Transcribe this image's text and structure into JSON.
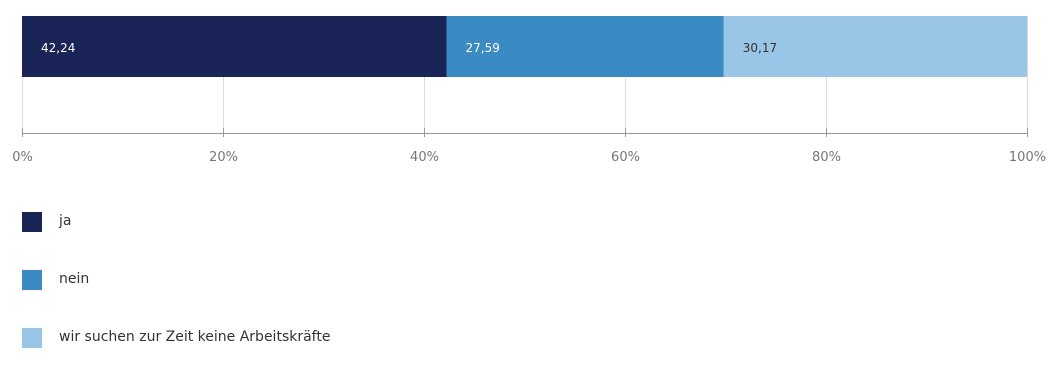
{
  "chart_data": {
    "type": "bar",
    "orientation": "horizontal",
    "stacked": true,
    "series": [
      {
        "name": "ja",
        "value": 42.24,
        "label": "42,24",
        "color": "#1a2456"
      },
      {
        "name": "nein",
        "value": 27.59,
        "label": "27,59",
        "color": "#3a8ac4"
      },
      {
        "name": "wir suchen zur Zeit keine Arbeitskräfte",
        "value": 30.17,
        "label": "30,17",
        "color": "#99c6e6"
      }
    ],
    "xlim": [
      0,
      100
    ],
    "x_ticks": [
      0,
      20,
      40,
      60,
      80,
      100
    ],
    "x_tick_labels": [
      "0%",
      "20%",
      "40%",
      "60%",
      "80%",
      "100%"
    ],
    "grid": true,
    "legend_position": "bottom-left"
  }
}
